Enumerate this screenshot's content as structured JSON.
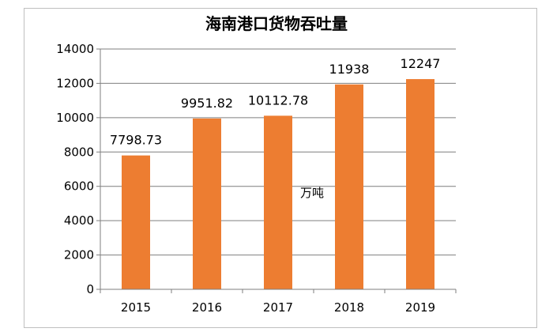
{
  "chart_data": {
    "type": "bar",
    "title": "海南港口货物吞吐量",
    "unit_label": "万吨",
    "categories": [
      "2015",
      "2016",
      "2017",
      "2018",
      "2019"
    ],
    "series": [
      {
        "values": [
          7798.73,
          9951.82,
          10112.78,
          11938,
          12247
        ],
        "data_labels": [
          "7798.73",
          "9951.82",
          "10112.78",
          "11938",
          "12247"
        ],
        "color": "#ed7d31"
      }
    ],
    "ylim": [
      0,
      14000
    ],
    "yticks": [
      "0",
      "2000",
      "4000",
      "6000",
      "8000",
      "10000",
      "12000",
      "14000"
    ],
    "grid": true,
    "legend": "none"
  }
}
